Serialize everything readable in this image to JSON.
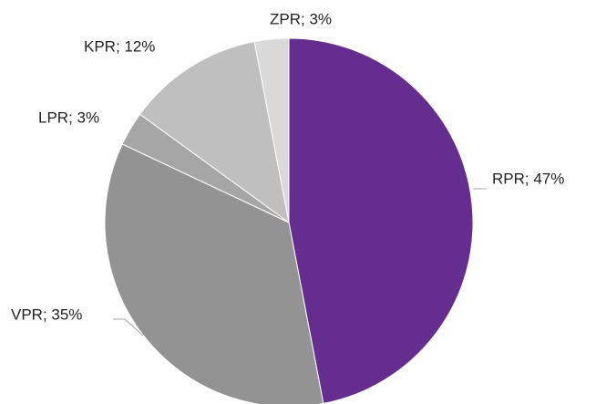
{
  "chart_data": {
    "type": "pie",
    "values": [
      47,
      35,
      3,
      12,
      3
    ],
    "value_labels": [
      "RPR; 47%",
      "VPR; 35%",
      "LPR; 3%",
      "KPR; 12%",
      "ZPR; 3%"
    ],
    "colors": [
      "#652d90",
      "#939393",
      "#a6a6a6",
      "#bfbfbf",
      "#d9d9d9"
    ]
  }
}
